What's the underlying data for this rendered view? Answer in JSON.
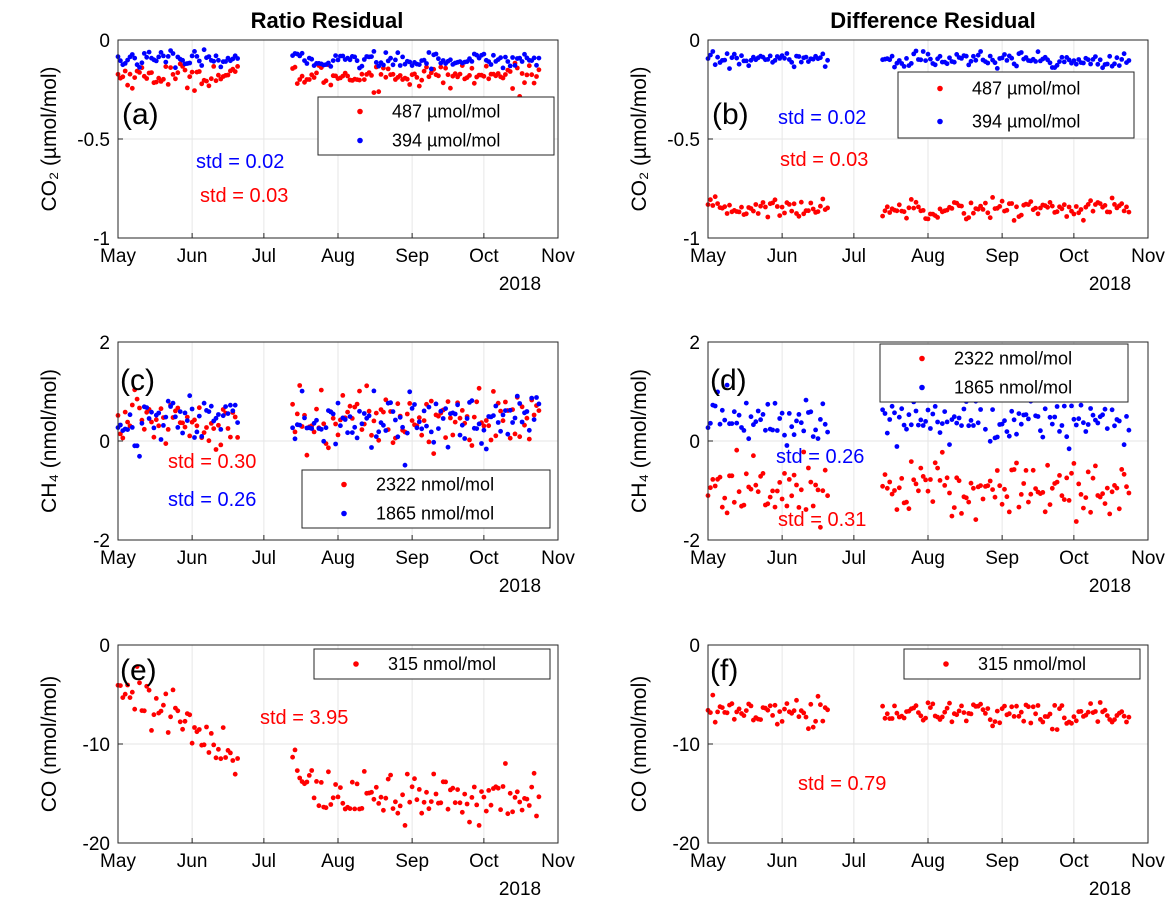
{
  "figure": {
    "col_titles": [
      "Ratio Residual",
      "Difference Residual"
    ],
    "year_label": "2018",
    "colors": {
      "red": "#ff0000",
      "blue": "#0000ff"
    }
  },
  "chart_data": [
    {
      "type": "scatter",
      "panel_label": "(a)",
      "ylabel": "CO₂ (µmol/mol)",
      "ylim": [
        -1,
        0
      ],
      "yticks": [
        -1,
        -0.5,
        0
      ],
      "ytick_labels": [
        "-1",
        "-0.5",
        "0"
      ],
      "xlim": [
        "2018-05-01",
        "2018-11-01"
      ],
      "xtick_labels": [
        "May",
        "Jun",
        "Jul",
        "Aug",
        "Sep",
        "Oct",
        "Nov"
      ],
      "grid": true,
      "legend_placement": "top-right",
      "series": [
        {
          "name": "487 µmol/mol",
          "color": "#ff0000",
          "mean": -0.18,
          "spread": 0.03,
          "slope": 0
        },
        {
          "name": "394 µmol/mol",
          "color": "#0000ff",
          "mean": -0.1,
          "spread": 0.02,
          "slope": 0
        }
      ],
      "annotations": [
        {
          "text": "std = 0.02",
          "color": "#0000ff"
        },
        {
          "text": "std = 0.03",
          "color": "#ff0000"
        }
      ]
    },
    {
      "type": "scatter",
      "panel_label": "(b)",
      "ylabel": "CO₂ (µmol/mol)",
      "ylim": [
        -1,
        0
      ],
      "yticks": [
        -1,
        -0.5,
        0
      ],
      "ytick_labels": [
        "-1",
        "-0.5",
        "0"
      ],
      "xlim": [
        "2018-05-01",
        "2018-11-01"
      ],
      "xtick_labels": [
        "May",
        "Jun",
        "Jul",
        "Aug",
        "Sep",
        "Oct",
        "Nov"
      ],
      "grid": true,
      "legend_placement": "top-right",
      "series": [
        {
          "name": "487 µmol/mol",
          "color": "#ff0000",
          "mean": -0.85,
          "spread": 0.025,
          "slope": 0
        },
        {
          "name": "394 µmol/mol",
          "color": "#0000ff",
          "mean": -0.1,
          "spread": 0.02,
          "slope": 0
        }
      ],
      "annotations": [
        {
          "text": "std = 0.02",
          "color": "#0000ff"
        },
        {
          "text": "std = 0.03",
          "color": "#ff0000"
        }
      ]
    },
    {
      "type": "scatter",
      "panel_label": "(c)",
      "ylabel": "CH₄ (nmol/mol)",
      "ylim": [
        -2,
        2
      ],
      "yticks": [
        -2,
        0,
        2
      ],
      "ytick_labels": [
        "-2",
        "0",
        "2"
      ],
      "xlim": [
        "2018-05-01",
        "2018-11-01"
      ],
      "xtick_labels": [
        "May",
        "Jun",
        "Jul",
        "Aug",
        "Sep",
        "Oct",
        "Nov"
      ],
      "grid": true,
      "legend_placement": "bottom-right",
      "series": [
        {
          "name": "2322 nmol/mol",
          "color": "#ff0000",
          "mean": 0.45,
          "spread": 0.3,
          "slope": 0
        },
        {
          "name": "1865 nmol/mol",
          "color": "#0000ff",
          "mean": 0.4,
          "spread": 0.26,
          "slope": 0
        }
      ],
      "annotations": [
        {
          "text": "std = 0.30",
          "color": "#ff0000"
        },
        {
          "text": "std = 0.26",
          "color": "#0000ff"
        }
      ]
    },
    {
      "type": "scatter",
      "panel_label": "(d)",
      "ylabel": "CH₄ (nmol/mol)",
      "ylim": [
        -2,
        2
      ],
      "yticks": [
        -2,
        0,
        2
      ],
      "ytick_labels": [
        "-2",
        "0",
        "2"
      ],
      "xlim": [
        "2018-05-01",
        "2018-11-01"
      ],
      "xtick_labels": [
        "May",
        "Jun",
        "Jul",
        "Aug",
        "Sep",
        "Oct",
        "Nov"
      ],
      "grid": true,
      "legend_placement": "top-right",
      "series": [
        {
          "name": "2322 nmol/mol",
          "color": "#ff0000",
          "mean": -0.95,
          "spread": 0.31,
          "slope": 0
        },
        {
          "name": "1865 nmol/mol",
          "color": "#0000ff",
          "mean": 0.4,
          "spread": 0.26,
          "slope": 0
        }
      ],
      "annotations": [
        {
          "text": "std = 0.26",
          "color": "#0000ff"
        },
        {
          "text": "std = 0.31",
          "color": "#ff0000"
        }
      ]
    },
    {
      "type": "scatter",
      "panel_label": "(e)",
      "ylabel": "CO (nmol/mol)",
      "ylim": [
        -20,
        0
      ],
      "yticks": [
        -20,
        -10,
        0
      ],
      "ytick_labels": [
        "-20",
        "-10",
        "0"
      ],
      "xlim": [
        "2018-05-01",
        "2018-11-01"
      ],
      "xtick_labels": [
        "May",
        "Jun",
        "Jul",
        "Aug",
        "Sep",
        "Oct",
        "Nov"
      ],
      "grid": true,
      "legend_placement": "top-right",
      "series": [
        {
          "name": "315 nmol/mol",
          "color": "#ff0000",
          "mean": -15.5,
          "spread": 1.3,
          "slope": 0,
          "early_from": -3.5,
          "early_to": -11.5
        }
      ],
      "annotations": [
        {
          "text": "std = 3.95",
          "color": "#ff0000"
        }
      ]
    },
    {
      "type": "scatter",
      "panel_label": "(f)",
      "ylabel": "CO (nmol/mol)",
      "ylim": [
        -20,
        0
      ],
      "yticks": [
        -20,
        -10,
        0
      ],
      "ytick_labels": [
        "-20",
        "-10",
        "0"
      ],
      "xlim": [
        "2018-05-01",
        "2018-11-01"
      ],
      "xtick_labels": [
        "May",
        "Jun",
        "Jul",
        "Aug",
        "Sep",
        "Oct",
        "Nov"
      ],
      "grid": true,
      "legend_placement": "top-right",
      "series": [
        {
          "name": "315 nmol/mol",
          "color": "#ff0000",
          "mean": -6.7,
          "spread": 0.7,
          "slope": -0.002
        }
      ],
      "annotations": [
        {
          "text": "std = 0.79",
          "color": "#ff0000"
        }
      ]
    }
  ]
}
